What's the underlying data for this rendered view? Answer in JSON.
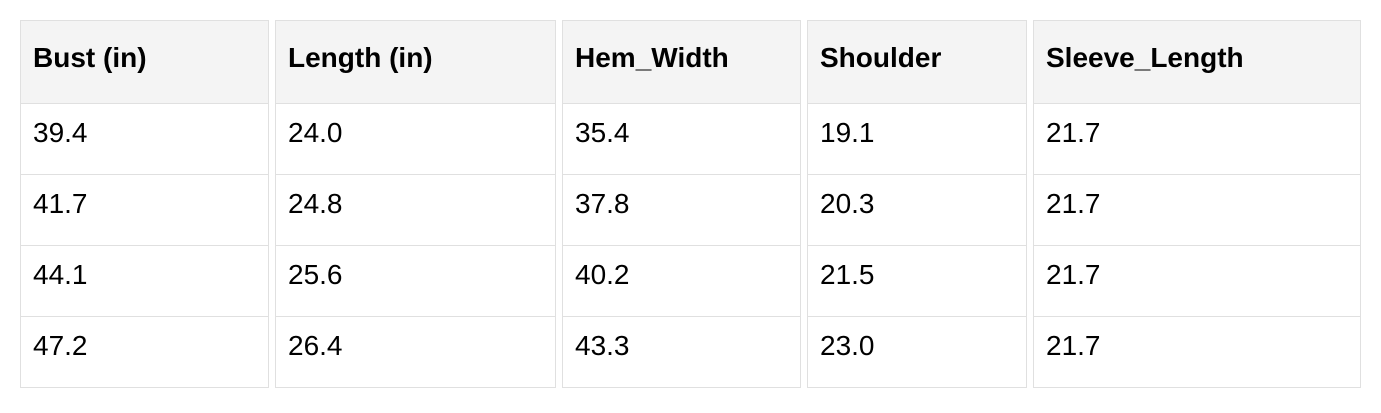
{
  "table": {
    "columns": [
      "Bust (in)",
      "Length (in)",
      "Hem_Width",
      "Shoulder",
      "Sleeve_Length"
    ],
    "rows": [
      [
        "39.4",
        "24.0",
        "35.4",
        "19.1",
        "21.7"
      ],
      [
        "41.7",
        "24.8",
        "37.8",
        "20.3",
        "21.7"
      ],
      [
        "44.1",
        "25.6",
        "40.2",
        "21.5",
        "21.7"
      ],
      [
        "47.2",
        "26.4",
        "43.3",
        "23.0",
        "21.7"
      ]
    ]
  },
  "colors": {
    "header_background": "#f4f4f4",
    "cell_border": "#e0e0e0",
    "text": "#000000",
    "page_background": "#ffffff"
  }
}
